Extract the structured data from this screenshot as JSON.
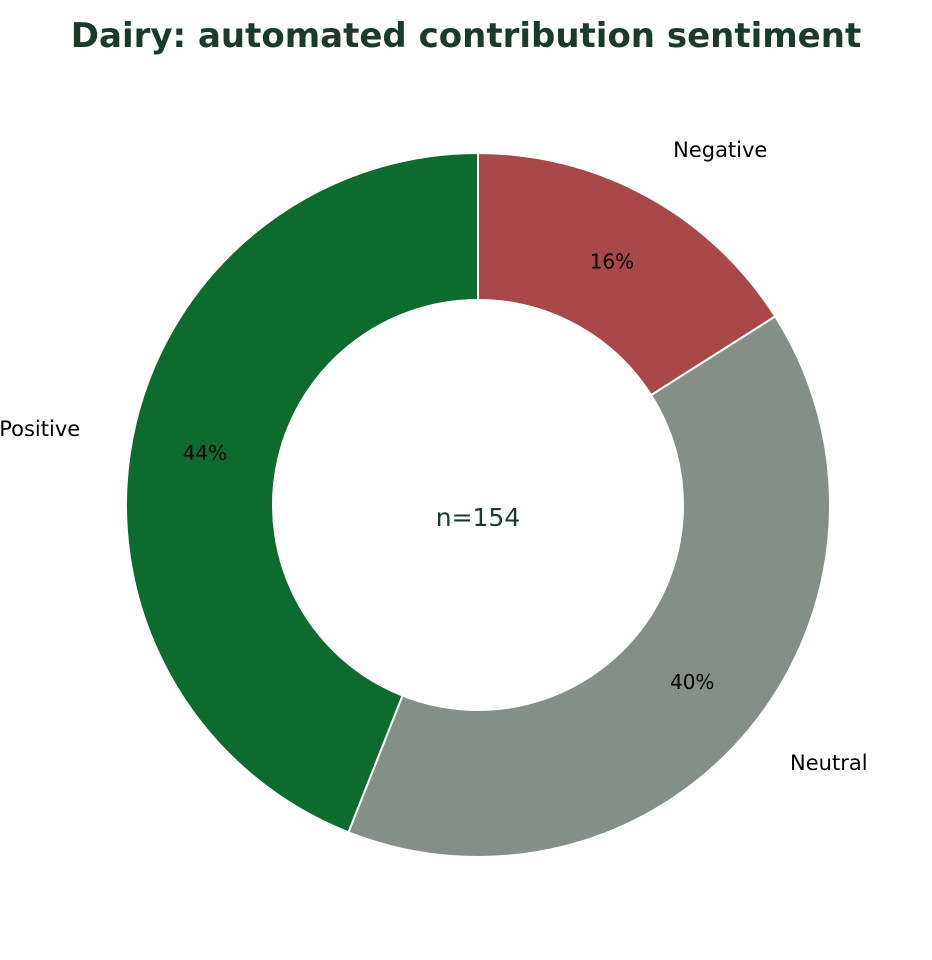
{
  "chart_data": {
    "type": "pie",
    "title": "Dairy: automated contribution sentiment",
    "center_text": "n=154",
    "categories": [
      "Negative",
      "Neutral",
      "Positive"
    ],
    "values": [
      16,
      40,
      44
    ],
    "value_labels": [
      "16%",
      "40%",
      "44%"
    ],
    "colors": [
      "#a84848",
      "#838f87",
      "#0d6b2d"
    ],
    "donut": true,
    "start_angle_deg": 90,
    "direction": "clockwise",
    "legend": "none"
  }
}
